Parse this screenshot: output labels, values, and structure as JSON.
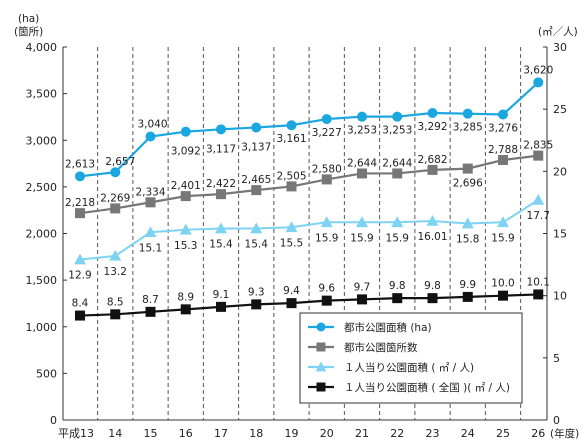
{
  "chart_data": {
    "type": "line",
    "x": [
      "平成13",
      "14",
      "15",
      "16",
      "17",
      "18",
      "19",
      "20",
      "21",
      "22",
      "23",
      "24",
      "25",
      "26"
    ],
    "x_unit": "(年度)",
    "y_left": {
      "unit_lines": [
        "(ha)",
        "(箇所)"
      ],
      "range": [
        0,
        4000
      ],
      "ticks": [
        "0",
        "500",
        "1,000",
        "1,500",
        "2,000",
        "2,500",
        "3,000",
        "3,500",
        "4,000"
      ]
    },
    "y_right": {
      "unit": "(㎡／人)",
      "range": [
        0,
        30
      ],
      "ticks": [
        "0",
        "5",
        "10",
        "15",
        "20",
        "25",
        "30"
      ]
    },
    "grid": {
      "vertical_dashed": true,
      "horizontal": false
    },
    "legend_position": "bottom-right",
    "series": [
      {
        "name": "都市公園面積 (ha)",
        "axis": "left",
        "color": "#1aa6e0",
        "marker": "circle",
        "values": [
          2613,
          2657,
          3040,
          3092,
          3117,
          3137,
          3161,
          3227,
          3253,
          3253,
          3292,
          3285,
          3276,
          3620
        ],
        "labels": [
          "2,613",
          "2,657",
          "3,040",
          "3,092",
          "3,117",
          "3,137",
          "3,161",
          "3,227",
          "3,253",
          "3,253",
          "3,292",
          "3,285",
          "3,276",
          "3,620"
        ]
      },
      {
        "name": "都市公園箇所数",
        "axis": "left",
        "color": "#777777",
        "marker": "square",
        "values": [
          2218,
          2269,
          2334,
          2401,
          2422,
          2465,
          2505,
          2580,
          2644,
          2644,
          2682,
          2696,
          2788,
          2835
        ],
        "labels": [
          "2,218",
          "2,269",
          "2,334",
          "2,401",
          "2,422",
          "2,465",
          "2,505",
          "2,580",
          "2,644",
          "2,644",
          "2,682",
          "2,696",
          "2,788",
          "2,835"
        ]
      },
      {
        "name": "１人当り公園面積 ( ㎡ / 人)",
        "axis": "right",
        "color": "#7fd3f2",
        "marker": "triangle",
        "values": [
          12.9,
          13.2,
          15.1,
          15.3,
          15.4,
          15.4,
          15.5,
          15.9,
          15.9,
          15.9,
          16.01,
          15.8,
          15.9,
          17.7
        ],
        "labels": [
          "12.9",
          "13.2",
          "15.1",
          "15.3",
          "15.4",
          "15.4",
          "15.5",
          "15.9",
          "15.9",
          "15.9",
          "16.01",
          "15.8",
          "15.9",
          "17.7"
        ]
      },
      {
        "name": "１人当り公園面積 ( 全国 )( ㎡ / 人)",
        "axis": "right",
        "color": "#111111",
        "marker": "square",
        "values": [
          8.4,
          8.5,
          8.7,
          8.9,
          9.1,
          9.3,
          9.4,
          9.6,
          9.7,
          9.8,
          9.8,
          9.9,
          10.0,
          10.1
        ],
        "labels": [
          "8.4",
          "8.5",
          "8.7",
          "8.9",
          "9.1",
          "9.3",
          "9.4",
          "9.6",
          "9.7",
          "9.8",
          "9.8",
          "9.9",
          "10.0",
          "10.1"
        ]
      }
    ]
  }
}
